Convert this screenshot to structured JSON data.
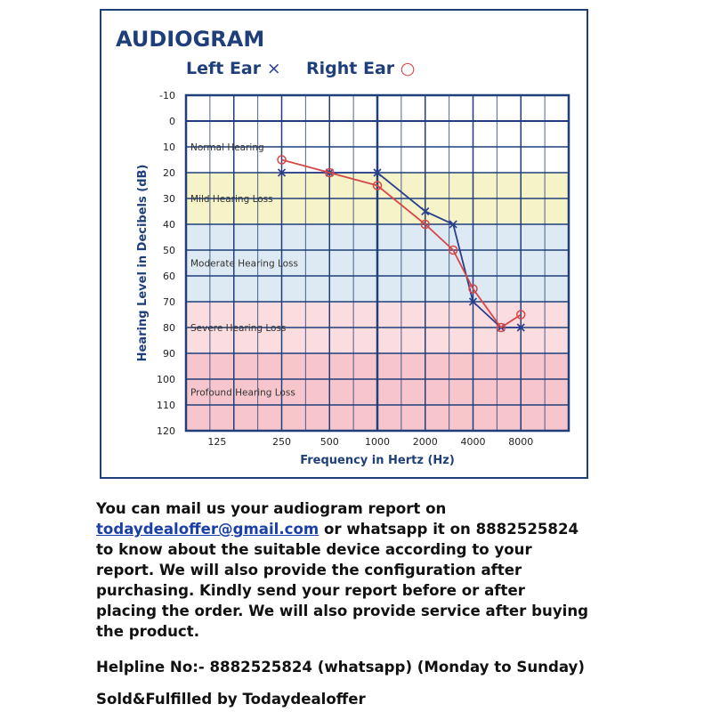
{
  "chart_data": {
    "type": "line",
    "title": "AUDIOGRAM",
    "xlabel": "Frequency in Hertz (Hz)",
    "ylabel": "Hearing Level in Decibels (dB)",
    "x_ticks": [
      "125",
      "250",
      "500",
      "1000",
      "2000",
      "4000",
      "8000"
    ],
    "y_ticks": [
      "-10",
      "0",
      "10",
      "20",
      "30",
      "40",
      "50",
      "60",
      "70",
      "80",
      "90",
      "100",
      "110",
      "120"
    ],
    "ylim": [
      -10,
      120
    ],
    "y_inverted": true,
    "x_scale": "log2",
    "grid": true,
    "bands": [
      {
        "label": "Normal Hearing",
        "from": 0,
        "to": 20,
        "color": "#ffffff"
      },
      {
        "label": "Mild Hearing Loss",
        "from": 20,
        "to": 40,
        "color": "#f7f3c8"
      },
      {
        "label": "Moderate Hearing Loss",
        "from": 40,
        "to": 70,
        "color": "#dde9f3"
      },
      {
        "label": "Severe Hearing Loss",
        "from": 70,
        "to": 90,
        "color": "#fbdde0"
      },
      {
        "label": "Profound Hearing Loss",
        "from": 90,
        "to": 120,
        "color": "#f7c6cc"
      }
    ],
    "series": [
      {
        "name": "Left Ear",
        "symbol": "×",
        "marker": "cross",
        "color": "#2a3f8f",
        "x": [
          250,
          500,
          1000,
          2000,
          3000,
          4000,
          6000,
          8000
        ],
        "values": [
          20,
          20,
          20,
          35,
          40,
          70,
          80,
          80
        ]
      },
      {
        "name": "Right Ear",
        "symbol": "○",
        "marker": "circle",
        "color": "#d6474a",
        "x": [
          250,
          500,
          1000,
          2000,
          3000,
          4000,
          6000,
          8000
        ],
        "values": [
          15,
          20,
          25,
          40,
          50,
          65,
          80,
          75
        ]
      }
    ],
    "colors": {
      "frame": "#1f3f7a",
      "title": "#1f3f7a",
      "grid": "#1f3f7a",
      "tick_text": "#222222",
      "band_text": "#333333"
    }
  },
  "info": {
    "line1": "You can mail us your audiogram report on",
    "email": "todaydealoffer@gmail.com",
    "after_email": " or whatsapp it on 8882525824",
    "rest_lines": [
      "to know about the suitable device according to your",
      "report. We will also provide the configuration after",
      "purchasing. Kindly send your report before or after",
      "placing the order. We will also provide service after buying",
      "the product."
    ],
    "helpline": "Helpline No:- 8882525824 (whatsapp) (Monday to Sunday)",
    "sold_by": "Sold&Fulfilled by Todaydealoffer"
  }
}
